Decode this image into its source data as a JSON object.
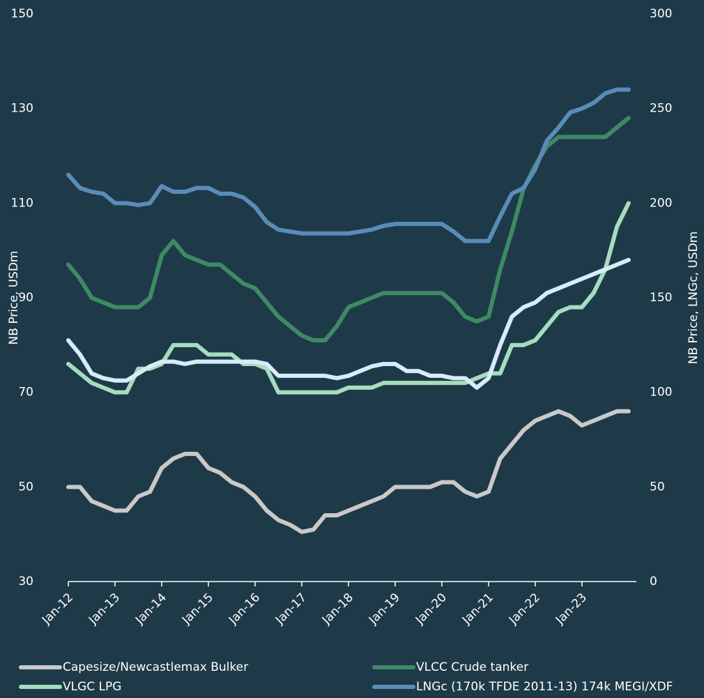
{
  "chart_data": {
    "type": "line",
    "y_label": "NB Price,  USDm",
    "y2_label": "NB Price, LNGc, USDm",
    "x": [
      "Jan-12",
      "Apr-12",
      "Jul-12",
      "Oct-12",
      "Jan-13",
      "Apr-13",
      "Jul-13",
      "Oct-13",
      "Jan-14",
      "Apr-14",
      "Jul-14",
      "Oct-14",
      "Jan-15",
      "Apr-15",
      "Jul-15",
      "Oct-15",
      "Jan-16",
      "Apr-16",
      "Jul-16",
      "Oct-16",
      "Jan-17",
      "Apr-17",
      "Jul-17",
      "Oct-17",
      "Jan-18",
      "Apr-18",
      "Jul-18",
      "Oct-18",
      "Jan-19",
      "Apr-19",
      "Jul-19",
      "Oct-19",
      "Jan-20",
      "Apr-20",
      "Jul-20",
      "Oct-20",
      "Jan-21",
      "Apr-21",
      "Jul-21",
      "Oct-21",
      "Jan-22",
      "Apr-22",
      "Jul-22",
      "Oct-22",
      "Jan-23",
      "Apr-23",
      "Jul-23",
      "Oct-23",
      "Jan-24"
    ],
    "xlim": [
      "Jan-12",
      "Mar-24"
    ],
    "xticks": [
      "Jan-12",
      "Jan-13",
      "Jan-14",
      "Jan-15",
      "Jan-16",
      "Jan-17",
      "Jan-18",
      "Jan-19",
      "Jan-20",
      "Jan-21",
      "Jan-22",
      "Jan-23"
    ],
    "ylim": [
      30,
      150
    ],
    "yticks": [
      30,
      50,
      70,
      90,
      110,
      130,
      150
    ],
    "y2lim": [
      0,
      300
    ],
    "y2ticks": [
      0,
      50,
      100,
      150,
      200,
      250,
      300
    ],
    "series": [
      {
        "name": "Capesize/Newcastlemax Bulker",
        "color": "#c9c9c9",
        "values": [
          50,
          50,
          47,
          46,
          45,
          45,
          48,
          49,
          54,
          56,
          57,
          57,
          54,
          53,
          51,
          50,
          48,
          45,
          43,
          42,
          40.5,
          41,
          44,
          44,
          45,
          46,
          47,
          48,
          50,
          50,
          50,
          50,
          51,
          51,
          49,
          48,
          49,
          56,
          59,
          62,
          64,
          65,
          66,
          65,
          63,
          64,
          65,
          66,
          66
        ]
      },
      {
        "name": "VLCC Crude tanker",
        "color": "#3e8a66",
        "values": [
          97,
          94,
          90,
          89,
          88,
          88,
          88,
          90,
          99,
          102,
          99,
          98,
          97,
          97,
          95,
          93,
          92,
          89,
          86,
          84,
          82,
          81,
          81,
          84,
          88,
          89,
          90,
          91,
          91,
          91,
          91,
          91,
          91,
          89,
          86,
          85,
          86,
          96,
          104,
          113,
          118,
          122,
          124,
          124,
          124,
          124,
          124,
          126,
          128
        ]
      },
      {
        "name": "VLGC LPG",
        "color": "#a6dcbf",
        "values": [
          76,
          74,
          72,
          71,
          70,
          70,
          75,
          75,
          76,
          80,
          80,
          80,
          78,
          78,
          78,
          76,
          76,
          75,
          70,
          70,
          70,
          70,
          70,
          70,
          71,
          71,
          71,
          72,
          72,
          72,
          72,
          72,
          72,
          72,
          72,
          73,
          74,
          74,
          80,
          80,
          81,
          84,
          87,
          88,
          88,
          91,
          96,
          105,
          110
        ]
      },
      {
        "name": "LNGc (170k TFDE 2011-13) 174k MEGI/XDF",
        "color": "#5a8cb8",
        "axis": "y2",
        "values": [
          215,
          208,
          206,
          205,
          200,
          200,
          199,
          200,
          209,
          206,
          206,
          208,
          208,
          205,
          205,
          203,
          198,
          190,
          186,
          185,
          184,
          184,
          184,
          184,
          184,
          185,
          186,
          188,
          189,
          189,
          189,
          189,
          189,
          185,
          180,
          180,
          180,
          193,
          205,
          208,
          218,
          233,
          240,
          248,
          250,
          253,
          258,
          260,
          260
        ]
      },
      {
        "name": null,
        "color": "#d8ebf9",
        "values": [
          81,
          78,
          74,
          73,
          72.5,
          72.5,
          74,
          75.5,
          76.5,
          76.5,
          76,
          76.5,
          76.5,
          76.5,
          76.5,
          76.5,
          76.5,
          76,
          73.5,
          73.5,
          73.5,
          73.5,
          73.5,
          73,
          73.5,
          74.5,
          75.5,
          76,
          76,
          74.5,
          74.5,
          73.5,
          73.5,
          73,
          73,
          71,
          73,
          80,
          86,
          88,
          89,
          91,
          92,
          93,
          94,
          95,
          96,
          97,
          98
        ]
      }
    ]
  }
}
